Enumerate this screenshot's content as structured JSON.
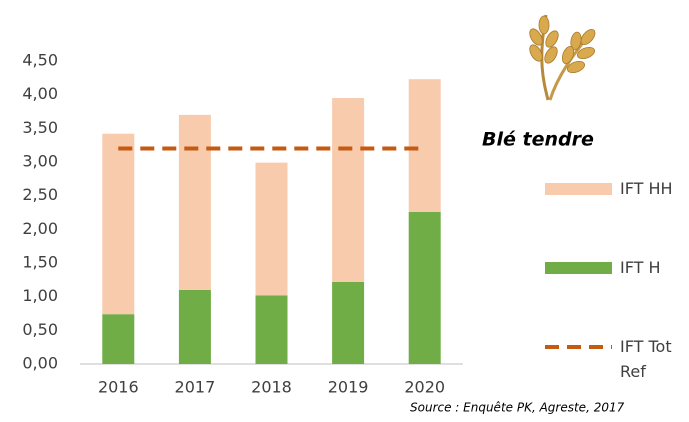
{
  "chart_data": {
    "type": "bar",
    "stacked": true,
    "title": "Blé tendre",
    "source": "Source : Enquête PK, Agreste, 2017",
    "categories": [
      "2016",
      "2017",
      "2018",
      "2019",
      "2020"
    ],
    "series": [
      {
        "name": "IFT H",
        "type": "bar",
        "color": "#70ad47",
        "values": [
          0.74,
          1.1,
          1.02,
          1.22,
          2.26
        ]
      },
      {
        "name": "IFT HH",
        "type": "bar",
        "color": "#f8cbad",
        "values": [
          2.68,
          2.6,
          1.97,
          2.73,
          1.97
        ]
      },
      {
        "name": "IFT Tot Ref",
        "type": "line",
        "dashed": true,
        "color": "#c55a11",
        "values": [
          3.2,
          3.2,
          3.2,
          3.2,
          3.2
        ]
      }
    ],
    "legend_order": [
      1,
      0,
      2
    ],
    "ylim": [
      0,
      4.5
    ],
    "yticks": [
      {
        "value": 0,
        "label": "0,00"
      },
      {
        "value": 0.5,
        "label": "0,50"
      },
      {
        "value": 1,
        "label": "1,00"
      },
      {
        "value": 1.5,
        "label": "1,50"
      },
      {
        "value": 2,
        "label": "2,00"
      },
      {
        "value": 2.5,
        "label": "2,50"
      },
      {
        "value": 3,
        "label": "3,00"
      },
      {
        "value": 3.5,
        "label": "3,50"
      },
      {
        "value": 4,
        "label": "4,00"
      },
      {
        "value": 4.5,
        "label": "4,50"
      }
    ],
    "grid": false
  }
}
